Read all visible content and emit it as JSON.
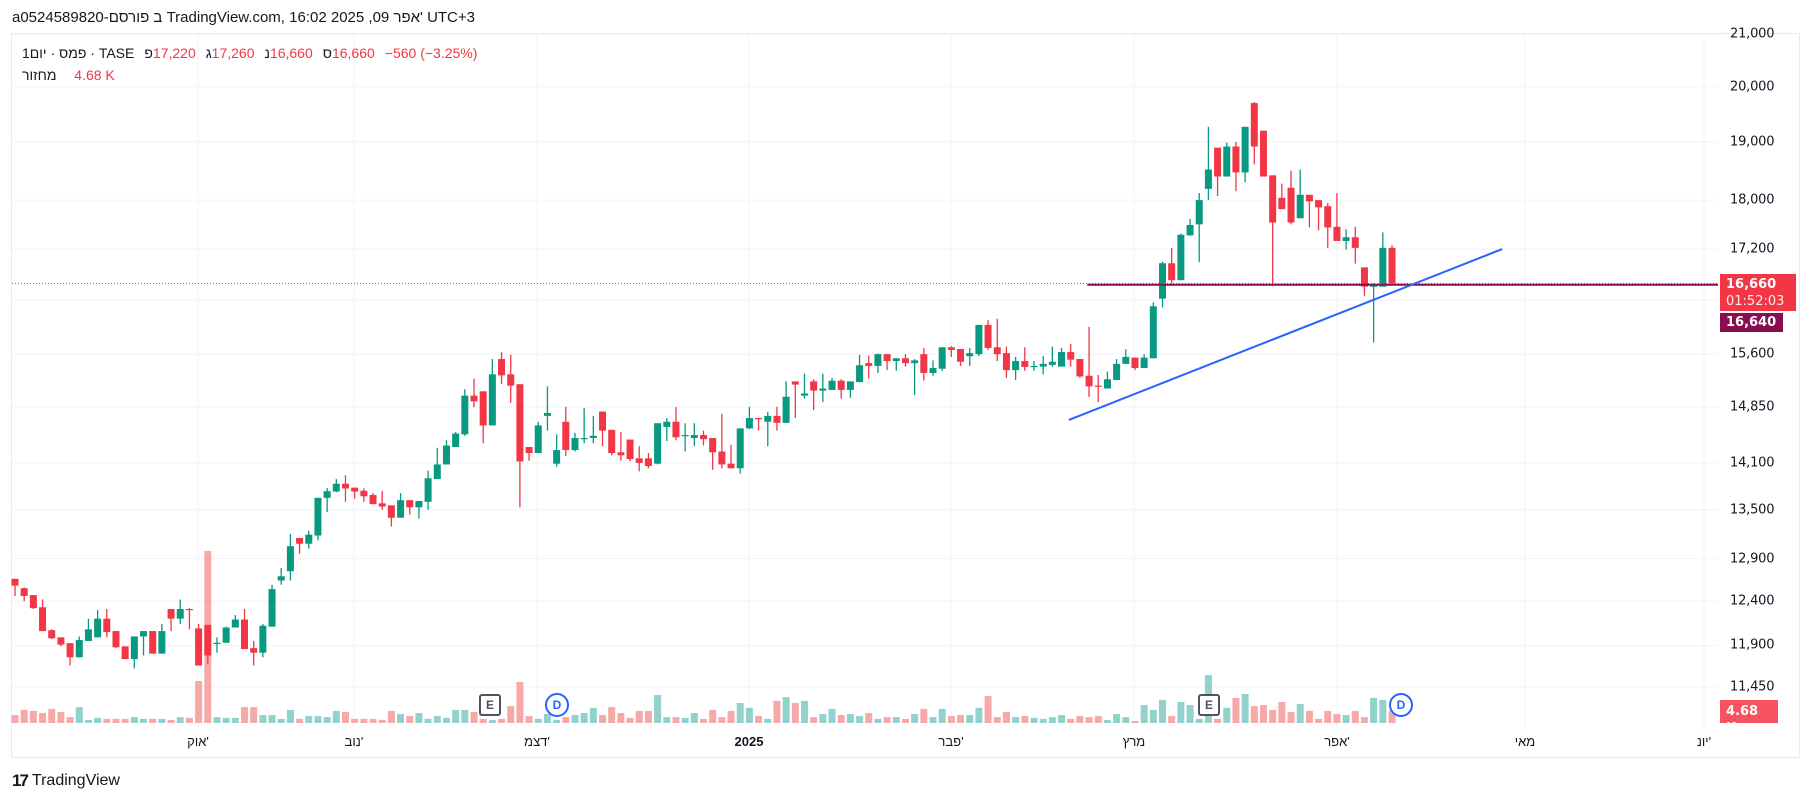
{
  "header": {
    "title": "a0524589820-פורסם ב TradingView.com, 16:02 2025 ,09 אפר' UTC+3"
  },
  "legend": {
    "interval": "1יום",
    "name": "פמס",
    "exchange": "TASE",
    "open_label": "פ",
    "open": "17,220",
    "high_label": "ג",
    "high": "17,260",
    "low_label": "נ",
    "low": "16,660",
    "close_label": "ס",
    "close": "16,660",
    "change": "−560 (−3.25%)",
    "volume_label": "מחזור",
    "volume": "4.68 K"
  },
  "price_axis": {
    "ticks": [
      "21,000",
      "20,000",
      "19,000",
      "18,000",
      "17,200",
      "15,600",
      "14,850",
      "14,100",
      "13,500",
      "12,900",
      "12,400",
      "11,900",
      "11,450"
    ],
    "tick_values": [
      21000,
      20000,
      19000,
      18000,
      17200,
      15600,
      14850,
      14100,
      13500,
      12900,
      12400,
      11900,
      11450
    ],
    "last_price_label": "16,660",
    "countdown": "01:52:03",
    "line_price_label": "16,640",
    "volume_label": "4.68 K"
  },
  "time_axis": {
    "labels": [
      "אוק'",
      "נוב'",
      "דצמ'",
      "2025",
      "פבר'",
      "מרץ",
      "אפר'",
      "מאי",
      "יונ'"
    ]
  },
  "events": {
    "earnings_1": "E",
    "dividend_1": "D",
    "earnings_2": "E",
    "dividend_2": "D"
  },
  "colors": {
    "up": "#089981",
    "down": "#f23645",
    "up_vol": "#92d2cc",
    "down_vol": "#f7a9a7",
    "trendline": "#2962ff",
    "hline": "#880e4f",
    "last_price": "#f23645"
  },
  "brand": {
    "name": "TradingView"
  },
  "chart_data": {
    "type": "candlestick",
    "scale": "log",
    "interval": "1D",
    "last_price": 16660,
    "horizontal_line": {
      "price": 16640,
      "from_bar": 116.8
    },
    "trendline": {
      "from": {
        "bar": 114.8,
        "price": 14675
      },
      "to": {
        "bar": 162,
        "price": 17200
      }
    },
    "ohlc": [
      [
        12660,
        12660,
        12460,
        12580
      ],
      [
        12550,
        12560,
        12400,
        12460
      ],
      [
        12470,
        12470,
        12310,
        12320
      ],
      [
        12330,
        12420,
        12060,
        12060
      ],
      [
        12070,
        12080,
        11970,
        11980
      ],
      [
        11990,
        11990,
        11890,
        11910
      ],
      [
        11925,
        11925,
        11680,
        11770
      ],
      [
        11770,
        12000,
        11770,
        11960
      ],
      [
        11950,
        12200,
        11950,
        12080
      ],
      [
        11990,
        12300,
        11990,
        12200
      ],
      [
        12200,
        12310,
        11990,
        12050
      ],
      [
        12060,
        12060,
        11870,
        11880
      ],
      [
        11890,
        11890,
        11750,
        11750
      ],
      [
        11750,
        12000,
        11650,
        12000
      ],
      [
        12000,
        12060,
        11790,
        12060
      ],
      [
        12060,
        12060,
        11810,
        11810
      ],
      [
        11810,
        12140,
        11810,
        12060
      ],
      [
        12310,
        12310,
        12060,
        12200
      ],
      [
        12200,
        12420,
        12140,
        12310
      ],
      [
        12310,
        12320,
        12080,
        12300
      ],
      [
        12090,
        12140,
        11680,
        11680
      ],
      [
        12130,
        12130,
        11700,
        11790
      ],
      [
        11920,
        11990,
        11820,
        11930
      ],
      [
        11930,
        12110,
        11930,
        12100
      ],
      [
        12100,
        12240,
        12100,
        12190
      ],
      [
        12190,
        12310,
        11860,
        11860
      ],
      [
        11870,
        11950,
        11680,
        11820
      ],
      [
        11820,
        12140,
        11770,
        12120
      ],
      [
        12110,
        12590,
        12110,
        12540
      ],
      [
        12640,
        12790,
        12590,
        12690
      ],
      [
        12750,
        13200,
        12640,
        13050
      ],
      [
        13150,
        13150,
        12960,
        13080
      ],
      [
        13080,
        13240,
        13020,
        13190
      ],
      [
        13180,
        13650,
        13120,
        13650
      ],
      [
        13650,
        13775,
        13470,
        13735
      ],
      [
        13730,
        13890,
        13720,
        13830
      ],
      [
        13830,
        13940,
        13600,
        13770
      ],
      [
        13780,
        13780,
        13640,
        13730
      ],
      [
        13740,
        13770,
        13600,
        13670
      ],
      [
        13685,
        13710,
        13570,
        13570
      ],
      [
        13580,
        13740,
        13500,
        13540
      ],
      [
        13555,
        13555,
        13290,
        13400
      ],
      [
        13400,
        13710,
        13400,
        13620
      ],
      [
        13620,
        13620,
        13440,
        13530
      ],
      [
        13530,
        13610,
        13390,
        13610
      ],
      [
        13600,
        14000,
        13500,
        13900
      ],
      [
        13890,
        14300,
        13890,
        14080
      ],
      [
        14080,
        14400,
        14080,
        14330
      ],
      [
        14310,
        14510,
        14310,
        14490
      ],
      [
        14480,
        15100,
        14460,
        15010
      ],
      [
        15010,
        15250,
        14850,
        14930
      ],
      [
        15070,
        15070,
        14360,
        14600
      ],
      [
        14600,
        15530,
        14600,
        15310
      ],
      [
        15530,
        15630,
        15170,
        15295
      ],
      [
        15310,
        15590,
        14910,
        15150
      ],
      [
        15170,
        15170,
        13530,
        14120
      ],
      [
        14310,
        14310,
        14130,
        14230
      ],
      [
        14230,
        14650,
        14230,
        14600
      ],
      [
        14730,
        15140,
        14530,
        14770
      ],
      [
        14090,
        14480,
        14050,
        14270
      ],
      [
        14650,
        14855,
        14190,
        14270
      ],
      [
        14270,
        14500,
        14250,
        14430
      ],
      [
        14425,
        14840,
        14360,
        14430
      ],
      [
        14430,
        14730,
        14360,
        14460
      ],
      [
        14790,
        14790,
        14320,
        14530
      ],
      [
        14540,
        14540,
        14200,
        14230
      ],
      [
        14240,
        14510,
        14130,
        14200
      ],
      [
        14410,
        14410,
        14120,
        14150
      ],
      [
        14160,
        14320,
        13990,
        14100
      ],
      [
        14160,
        14230,
        14030,
        14060
      ],
      [
        14090,
        14630,
        14080,
        14630
      ],
      [
        14580,
        14700,
        14390,
        14650
      ],
      [
        14650,
        14850,
        14400,
        14440
      ],
      [
        14455,
        14630,
        14250,
        14470
      ],
      [
        14430,
        14630,
        14320,
        14470
      ],
      [
        14470,
        14530,
        14330,
        14415
      ],
      [
        14430,
        14430,
        14010,
        14240
      ],
      [
        14250,
        14760,
        14030,
        14080
      ],
      [
        14090,
        14340,
        14030,
        14030
      ],
      [
        14030,
        14560,
        13960,
        14560
      ],
      [
        14560,
        14855,
        14550,
        14700
      ],
      [
        14700,
        14700,
        14530,
        14690
      ],
      [
        14650,
        14785,
        14320,
        14730
      ],
      [
        14730,
        14855,
        14530,
        14635
      ],
      [
        14635,
        15210,
        14635,
        14995
      ],
      [
        15210,
        15210,
        14700,
        15165
      ],
      [
        15010,
        15320,
        14970,
        15040
      ],
      [
        15210,
        15240,
        14810,
        15080
      ],
      [
        15080,
        15320,
        14920,
        15110
      ],
      [
        15090,
        15260,
        15090,
        15220
      ],
      [
        15220,
        15240,
        14970,
        15090
      ],
      [
        15090,
        15210,
        14980,
        15210
      ],
      [
        15200,
        15590,
        15200,
        15440
      ],
      [
        15470,
        15580,
        15250,
        15430
      ],
      [
        15430,
        15610,
        15330,
        15600
      ],
      [
        15600,
        15600,
        15370,
        15500
      ],
      [
        15500,
        15540,
        15360,
        15540
      ],
      [
        15540,
        15600,
        15420,
        15470
      ],
      [
        15470,
        15530,
        15020,
        15510
      ],
      [
        15600,
        15690,
        15220,
        15330
      ],
      [
        15330,
        15510,
        15290,
        15400
      ],
      [
        15390,
        15700,
        15360,
        15700
      ],
      [
        15700,
        15715,
        15560,
        15660
      ],
      [
        15675,
        15675,
        15430,
        15490
      ],
      [
        15570,
        15690,
        15430,
        15615
      ],
      [
        15600,
        16030,
        15570,
        16030
      ],
      [
        16030,
        16100,
        15660,
        15690
      ],
      [
        15700,
        16120,
        15500,
        15600
      ],
      [
        15615,
        15710,
        15260,
        15370
      ],
      [
        15370,
        15560,
        15230,
        15500
      ],
      [
        15500,
        15700,
        15360,
        15415
      ],
      [
        15420,
        15500,
        15360,
        15430
      ],
      [
        15420,
        15570,
        15310,
        15460
      ],
      [
        15445,
        15710,
        15420,
        15490
      ],
      [
        15420,
        15690,
        15420,
        15630
      ],
      [
        15630,
        15750,
        15420,
        15520
      ],
      [
        15530,
        15530,
        15260,
        15280
      ],
      [
        15290,
        16000,
        14990,
        15140
      ],
      [
        15150,
        15300,
        14920,
        15140
      ],
      [
        15110,
        15350,
        15110,
        15240
      ],
      [
        15230,
        15530,
        15230,
        15460
      ],
      [
        15460,
        15670,
        15460,
        15560
      ],
      [
        15550,
        15550,
        15370,
        15400
      ],
      [
        15400,
        15600,
        15400,
        15550
      ],
      [
        15540,
        16370,
        15540,
        16310
      ],
      [
        16425,
        17000,
        16290,
        16975
      ],
      [
        16975,
        17220,
        16660,
        16710
      ],
      [
        16710,
        17450,
        16710,
        17430
      ],
      [
        17420,
        17690,
        17420,
        17590
      ],
      [
        17600,
        18120,
        16990,
        18000
      ],
      [
        18190,
        19270,
        18000,
        18520
      ],
      [
        18900,
        18900,
        18070,
        18400
      ],
      [
        18400,
        18990,
        18400,
        18920
      ],
      [
        18920,
        19000,
        18150,
        18470
      ],
      [
        18470,
        19270,
        18300,
        19270
      ],
      [
        19700,
        19720,
        18610,
        18920
      ],
      [
        19200,
        19200,
        18400,
        18400
      ],
      [
        18420,
        18420,
        16620,
        17630
      ],
      [
        18040,
        18280,
        17850,
        17850
      ],
      [
        18210,
        18500,
        17600,
        17630
      ],
      [
        17700,
        18520,
        17700,
        18090
      ],
      [
        18090,
        18090,
        17550,
        17980
      ],
      [
        18000,
        18000,
        17500,
        17880
      ],
      [
        17900,
        17950,
        17220,
        17550
      ],
      [
        17560,
        18120,
        17330,
        17330
      ],
      [
        17330,
        17520,
        17190,
        17390
      ],
      [
        17390,
        17560,
        16970,
        17220
      ],
      [
        16910,
        16910,
        16470,
        16610
      ],
      [
        16610,
        16660,
        15770,
        16625
      ],
      [
        16610,
        17470,
        16610,
        17220
      ],
      [
        17220,
        17260,
        16660,
        16660
      ]
    ],
    "volume_k": [
      3.1,
      5.1,
      4.7,
      3.9,
      5.5,
      4.3,
      2.3,
      6.2,
      1.2,
      2.0,
      1.6,
      1.6,
      1.6,
      2.3,
      1.6,
      1.6,
      1.6,
      1.2,
      2.3,
      2.0,
      16.4,
      67.1,
      2.3,
      2.0,
      2.0,
      6.2,
      6.2,
      3.1,
      3.1,
      1.6,
      5.1,
      1.6,
      2.7,
      2.7,
      2.3,
      4.7,
      4.3,
      1.6,
      1.6,
      1.6,
      1.2,
      4.7,
      3.5,
      2.7,
      3.9,
      1.6,
      2.7,
      2.0,
      5.1,
      5.1,
      4.3,
      1.6,
      1.2,
      1.6,
      6.6,
      16.0,
      2.7,
      1.6,
      3.5,
      1.2,
      2.3,
      3.1,
      3.9,
      5.9,
      3.1,
      6.2,
      3.9,
      2.0,
      4.7,
      4.7,
      10.9,
      2.3,
      2.3,
      2.0,
      3.9,
      1.6,
      5.1,
      2.3,
      4.7,
      7.8,
      5.9,
      2.7,
      1.6,
      8.6,
      10.1,
      7.8,
      8.6,
      2.3,
      3.5,
      5.5,
      3.1,
      3.5,
      2.7,
      3.9,
      1.6,
      2.3,
      2.3,
      1.6,
      3.5,
      5.5,
      2.3,
      5.5,
      2.7,
      3.1,
      3.1,
      5.9,
      10.5,
      2.3,
      4.3,
      2.3,
      2.7,
      2.0,
      1.6,
      2.3,
      3.1,
      1.6,
      2.7,
      2.3,
      2.7,
      1.2,
      3.5,
      2.3,
      0.8,
      7.0,
      5.1,
      9.0,
      2.7,
      8.2,
      7.0,
      1.6,
      18.7,
      1.6,
      5.9,
      9.8,
      11.3,
      6.6,
      7.0,
      5.1,
      8.2,
      4.3,
      7.4,
      4.7,
      1.6,
      4.7,
      3.5,
      3.1,
      4.7,
      2.3,
      9.8,
      9.0,
      4.68
    ]
  }
}
